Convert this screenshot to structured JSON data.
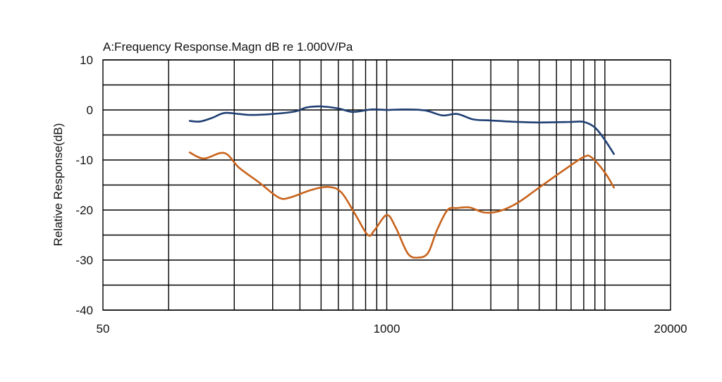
{
  "chart_data": {
    "type": "line",
    "title": "A:Frequency Response.Magn dB re 1.000V/Pa",
    "xlabel": "",
    "ylabel": "Relative Response(dB)",
    "x_scale": "log",
    "xlim": [
      50,
      20000
    ],
    "ylim": [
      -40,
      10
    ],
    "x_tick_labels": [
      "50",
      "1000",
      "20000"
    ],
    "y_tick_labels": [
      "10",
      "0",
      "-10",
      "-20",
      "-30",
      "-40"
    ],
    "grid": true,
    "legend": "none",
    "series": [
      {
        "color": "#1f3f73",
        "points": [
          {
            "x": 125,
            "y": -2.2
          },
          {
            "x": 140,
            "y": -2.3
          },
          {
            "x": 160,
            "y": -1.5
          },
          {
            "x": 180,
            "y": -0.6
          },
          {
            "x": 210,
            "y": -0.8
          },
          {
            "x": 240,
            "y": -1.0
          },
          {
            "x": 300,
            "y": -0.8
          },
          {
            "x": 380,
            "y": -0.3
          },
          {
            "x": 430,
            "y": 0.5
          },
          {
            "x": 500,
            "y": 0.7
          },
          {
            "x": 600,
            "y": 0.3
          },
          {
            "x": 700,
            "y": -0.4
          },
          {
            "x": 850,
            "y": 0.1
          },
          {
            "x": 1000,
            "y": 0.0
          },
          {
            "x": 1200,
            "y": 0.1
          },
          {
            "x": 1500,
            "y": -0.1
          },
          {
            "x": 1800,
            "y": -1.1
          },
          {
            "x": 2100,
            "y": -0.8
          },
          {
            "x": 2500,
            "y": -1.9
          },
          {
            "x": 3000,
            "y": -2.1
          },
          {
            "x": 4000,
            "y": -2.4
          },
          {
            "x": 5000,
            "y": -2.5
          },
          {
            "x": 7000,
            "y": -2.4
          },
          {
            "x": 8000,
            "y": -2.4
          },
          {
            "x": 9000,
            "y": -3.5
          },
          {
            "x": 10000,
            "y": -6.0
          },
          {
            "x": 11000,
            "y": -8.8
          }
        ]
      },
      {
        "color": "#c8631c",
        "points": [
          {
            "x": 125,
            "y": -8.5
          },
          {
            "x": 145,
            "y": -9.7
          },
          {
            "x": 180,
            "y": -8.6
          },
          {
            "x": 210,
            "y": -11.5
          },
          {
            "x": 260,
            "y": -14.5
          },
          {
            "x": 320,
            "y": -17.5
          },
          {
            "x": 360,
            "y": -17.5
          },
          {
            "x": 450,
            "y": -16.0
          },
          {
            "x": 540,
            "y": -15.4
          },
          {
            "x": 620,
            "y": -16.5
          },
          {
            "x": 720,
            "y": -21.0
          },
          {
            "x": 820,
            "y": -25.0
          },
          {
            "x": 880,
            "y": -24.0
          },
          {
            "x": 1000,
            "y": -21.0
          },
          {
            "x": 1100,
            "y": -23.5
          },
          {
            "x": 1250,
            "y": -28.7
          },
          {
            "x": 1400,
            "y": -29.5
          },
          {
            "x": 1550,
            "y": -28.5
          },
          {
            "x": 1700,
            "y": -24.0
          },
          {
            "x": 1900,
            "y": -20.0
          },
          {
            "x": 2100,
            "y": -19.6
          },
          {
            "x": 2400,
            "y": -19.5
          },
          {
            "x": 2800,
            "y": -20.5
          },
          {
            "x": 3300,
            "y": -20.2
          },
          {
            "x": 4000,
            "y": -18.5
          },
          {
            "x": 5000,
            "y": -15.5
          },
          {
            "x": 6500,
            "y": -12.0
          },
          {
            "x": 8000,
            "y": -9.4
          },
          {
            "x": 8700,
            "y": -9.5
          },
          {
            "x": 10000,
            "y": -12.5
          },
          {
            "x": 11000,
            "y": -15.5
          }
        ]
      }
    ]
  }
}
